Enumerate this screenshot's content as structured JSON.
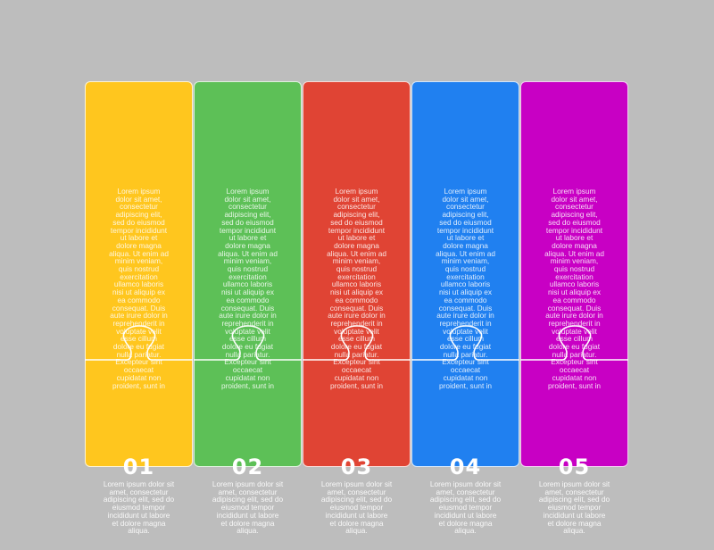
{
  "steps": [
    {
      "number": "01",
      "color": "#FFC61E",
      "top_text": "Lorem ipsum\ndolor sit amet,\nconsectetur\nadipiscing elit,\nsed do eiusmod\ntempor incididunt\nut labore et\ndolore magna\naliqua. Ut enim ad\nminim veniam,\nquis nostrud\nexercitation\nullamco laboris\nnisi ut aliquip ex\nea commodo\nconsequat. Duis\naute irure dolor in\nreprehenderit in\nvoluptate velit\nesse cillum\ndolore eu fugiat\nnulla pariatur.\nExcepteur sint\noccaecat\ncupidatat non\nproident, sunt in",
      "bottom_text": "Lorem ipsum dolor sit\namet, consectetur\nadipiscing elit, sed do\neiusmod tempor\nincididunt ut labore\net dolore magna\naliqua."
    },
    {
      "number": "02",
      "color": "#5DC057",
      "top_text": "Lorem ipsum\ndolor sit amet,\nconsectetur\nadipiscing elit,\nsed do eiusmod\ntempor incididunt\nut labore et\ndolore magna\naliqua. Ut enim ad\nminim veniam,\nquis nostrud\nexercitation\nullamco laboris\nnisi ut aliquip ex\nea commodo\nconsequat. Duis\naute irure dolor in\nreprehenderit in\nvoluptate velit\nesse cillum\ndolore eu fugiat\nnulla pariatur.\nExcepteur sint\noccaecat\ncupidatat non\nproident, sunt in",
      "bottom_text": "Lorem ipsum dolor sit\namet, consectetur\nadipiscing elit, sed do\neiusmod tempor\nincididunt ut labore\net dolore magna\naliqua."
    },
    {
      "number": "03",
      "color": "#E04434",
      "top_text": "Lorem ipsum\ndolor sit amet,\nconsectetur\nadipiscing elit,\nsed do eiusmod\ntempor incididunt\nut labore et\ndolore magna\naliqua. Ut enim ad\nminim veniam,\nquis nostrud\nexercitation\nullamco laboris\nnisi ut aliquip ex\nea commodo\nconsequat. Duis\naute irure dolor in\nreprehenderit in\nvoluptate velit\nesse cillum\ndolore eu fugiat\nnulla pariatur.\nExcepteur sint\noccaecat\ncupidatat non\nproident, sunt in",
      "bottom_text": "Lorem ipsum dolor sit\namet, consectetur\nadipiscing elit, sed do\neiusmod tempor\nincididunt ut labore\net dolore magna\naliqua."
    },
    {
      "number": "04",
      "color": "#2080F0",
      "top_text": "Lorem ipsum\ndolor sit amet,\nconsectetur\nadipiscing elit,\nsed do eiusmod\ntempor incididunt\nut labore et\ndolore magna\naliqua. Ut enim ad\nminim veniam,\nquis nostrud\nexercitation\nullamco laboris\nnisi ut aliquip ex\nea commodo\nconsequat. Duis\naute irure dolor in\nreprehenderit in\nvoluptate velit\nesse cillum\ndolore eu fugiat\nnulla pariatur.\nExcepteur sint\noccaecat\ncupidatat non\nproident, sunt in",
      "bottom_text": "Lorem ipsum dolor sit\namet, consectetur\nadipiscing elit, sed do\neiusmod tempor\nincididunt ut labore\net dolore magna\naliqua."
    },
    {
      "number": "05",
      "color": "#C800C4",
      "top_text": "Lorem ipsum\ndolor sit amet,\nconsectetur\nadipiscing elit,\nsed do eiusmod\ntempor incididunt\nut labore et\ndolore magna\naliqua. Ut enim ad\nminim veniam,\nquis nostrud\nexercitation\nullamco laboris\nnisi ut aliquip ex\nea commodo\nconsequat. Duis\naute irure dolor in\nreprehenderit in\nvoluptate velit\nesse cillum\ndolore eu fugiat\nnulla pariatur.\nExcepteur sint\noccaecat\ncupidatat non\nproident, sunt in",
      "bottom_text": "Lorem ipsum dolor sit\namet, consectetur\nadipiscing elit, sed do\neiusmod tempor\nincididunt ut labore\net dolore magna\naliqua."
    }
  ]
}
